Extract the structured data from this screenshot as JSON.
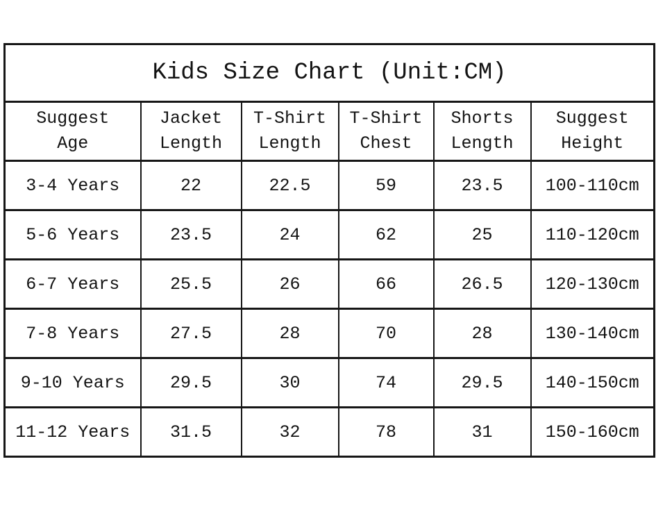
{
  "title": "Kids Size Chart (Unit:CM)",
  "table": {
    "headers": [
      {
        "line1": "Suggest",
        "line2": "Age"
      },
      {
        "line1": "Jacket",
        "line2": "Length"
      },
      {
        "line1": "T-Shirt",
        "line2": "Length"
      },
      {
        "line1": "T-Shirt",
        "line2": "Chest"
      },
      {
        "line1": "Shorts",
        "line2": "Length"
      },
      {
        "line1": "Suggest",
        "line2": "Height"
      }
    ],
    "rows": [
      {
        "cells": [
          "3-4 Years",
          "22",
          "22.5",
          "59",
          "23.5",
          "100-110cm"
        ]
      },
      {
        "cells": [
          "5-6 Years",
          "23.5",
          "24",
          "62",
          "25",
          "110-120cm"
        ]
      },
      {
        "cells": [
          "6-7 Years",
          "25.5",
          "26",
          "66",
          "26.5",
          "120-130cm"
        ]
      },
      {
        "cells": [
          "7-8 Years",
          "27.5",
          "28",
          "70",
          "28",
          "130-140cm"
        ]
      },
      {
        "cells": [
          "9-10 Years",
          "29.5",
          "30",
          "74",
          "29.5",
          "140-150cm"
        ]
      },
      {
        "cells": [
          "11-12 Years",
          "31.5",
          "32",
          "78",
          "31",
          "150-160cm"
        ]
      }
    ]
  },
  "colors": {
    "border": "#161616",
    "text": "#131313",
    "background": "#ffffff"
  },
  "chart_data": {
    "type": "table",
    "title": "Kids Size Chart (Unit:CM)",
    "unit": "CM",
    "columns": [
      "Suggest Age",
      "Jacket Length",
      "T-Shirt Length",
      "T-Shirt Chest",
      "Shorts Length",
      "Suggest Height"
    ],
    "rows": [
      [
        "3-4 Years",
        22,
        22.5,
        59,
        23.5,
        "100-110cm"
      ],
      [
        "5-6 Years",
        23.5,
        24,
        62,
        25,
        "110-120cm"
      ],
      [
        "6-7 Years",
        25.5,
        26,
        66,
        26.5,
        "120-130cm"
      ],
      [
        "7-8 Years",
        27.5,
        28,
        70,
        28,
        "130-140cm"
      ],
      [
        "9-10 Years",
        29.5,
        30,
        74,
        29.5,
        "140-150cm"
      ],
      [
        "11-12 Years",
        31.5,
        32,
        78,
        31,
        "150-160cm"
      ]
    ]
  }
}
